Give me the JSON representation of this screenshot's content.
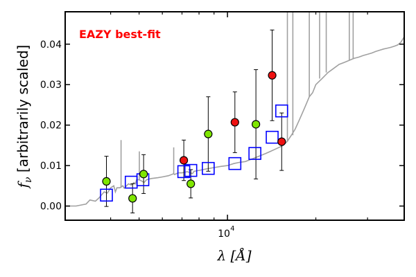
{
  "chart_data": {
    "type": "scatter",
    "annotation": "EAZY best-fit",
    "annotation_color": "#ff0000",
    "xlabel": "λ [Å]",
    "ylabel": "f_ν [arbitrarily scaled]",
    "xscale": "log",
    "xlim": [
      2800,
      40000
    ],
    "ylim": [
      -0.0035,
      0.048
    ],
    "y_ticks": [
      0.0,
      0.01,
      0.02,
      0.03,
      0.04
    ],
    "y_tick_labels": [
      "0.00",
      "0.01",
      "0.02",
      "0.03",
      "0.04"
    ],
    "x_tick_label": "10^4",
    "x_major_tick": 10000,
    "x_minor_ticks": [
      4000,
      5000,
      6000,
      7000,
      8000,
      9000,
      20000,
      30000,
      40000
    ],
    "grid": false,
    "template_spectrum": {
      "color": "#a0a0a0",
      "points": [
        [
          2800,
          0.0
        ],
        [
          3050,
          0.0
        ],
        [
          3300,
          0.0005
        ],
        [
          3400,
          0.0015
        ],
        [
          3550,
          0.0012
        ],
        [
          3650,
          0.002
        ],
        [
          3800,
          0.0035
        ],
        [
          3900,
          0.0032
        ],
        [
          4000,
          0.0045
        ],
        [
          4100,
          0.005
        ],
        [
          4150,
          0.0035
        ],
        [
          4200,
          0.0045
        ],
        [
          4300,
          0.0045
        ],
        [
          4400,
          0.005
        ],
        [
          4450,
          0.0044
        ],
        [
          4500,
          0.0048
        ],
        [
          4600,
          0.0055
        ],
        [
          4700,
          0.0052
        ],
        [
          4800,
          0.0058
        ],
        [
          4860,
          0.0055
        ],
        [
          4900,
          0.0065
        ],
        [
          5000,
          0.0065
        ],
        [
          5100,
          0.0062
        ],
        [
          5200,
          0.0058
        ],
        [
          5300,
          0.0065
        ],
        [
          5500,
          0.0068
        ],
        [
          5800,
          0.007
        ],
        [
          6000,
          0.0072
        ],
        [
          6300,
          0.0075
        ],
        [
          6560,
          0.008
        ],
        [
          6600,
          0.0078
        ],
        [
          6800,
          0.0082
        ],
        [
          7000,
          0.0082
        ],
        [
          7300,
          0.0085
        ],
        [
          7600,
          0.008
        ],
        [
          7700,
          0.0086
        ],
        [
          8000,
          0.0088
        ],
        [
          8500,
          0.0092
        ],
        [
          9000,
          0.0095
        ],
        [
          9500,
          0.0098
        ],
        [
          10000,
          0.01
        ],
        [
          10500,
          0.0105
        ],
        [
          11000,
          0.0108
        ],
        [
          11500,
          0.011
        ],
        [
          12000,
          0.0115
        ],
        [
          12500,
          0.012
        ],
        [
          13000,
          0.0125
        ],
        [
          13500,
          0.013
        ],
        [
          14000,
          0.0135
        ],
        [
          14500,
          0.014
        ],
        [
          15000,
          0.0145
        ],
        [
          15500,
          0.015
        ],
        [
          16000,
          0.016
        ],
        [
          16500,
          0.0175
        ],
        [
          17000,
          0.019
        ],
        [
          17500,
          0.021
        ],
        [
          18000,
          0.023
        ],
        [
          18500,
          0.025
        ],
        [
          19000,
          0.027
        ],
        [
          19500,
          0.028
        ],
        [
          20000,
          0.03
        ],
        [
          21000,
          0.0315
        ],
        [
          22000,
          0.033
        ],
        [
          23000,
          0.034
        ],
        [
          24000,
          0.035
        ],
        [
          25000,
          0.0355
        ],
        [
          26000,
          0.036
        ],
        [
          27000,
          0.0365
        ],
        [
          28000,
          0.0368
        ],
        [
          29000,
          0.0372
        ],
        [
          30000,
          0.0375
        ],
        [
          31000,
          0.0378
        ],
        [
          32000,
          0.0382
        ],
        [
          33000,
          0.0385
        ],
        [
          34000,
          0.0388
        ],
        [
          35000,
          0.039
        ],
        [
          36000,
          0.0392
        ],
        [
          37000,
          0.0395
        ],
        [
          38000,
          0.0398
        ],
        [
          39000,
          0.0405
        ],
        [
          40000,
          0.0418
        ]
      ],
      "emission_lines": [
        [
          4340,
          0.0163
        ],
        [
          5010,
          0.0135
        ],
        [
          6560,
          0.0145
        ],
        [
          16000,
          0.05
        ],
        [
          16700,
          0.05
        ],
        [
          19000,
          0.05
        ],
        [
          20600,
          0.05
        ],
        [
          21700,
          0.05
        ],
        [
          26000,
          0.05
        ],
        [
          26800,
          0.05
        ]
      ]
    },
    "series": [
      {
        "name": "EAZY best-fit",
        "marker": "square",
        "color": "#0000ff",
        "x": [
          3870,
          4700,
          5150,
          7100,
          7500,
          8600,
          10600,
          12400,
          14200,
          15300
        ],
        "y": [
          0.0027,
          0.0059,
          0.0065,
          0.0085,
          0.0088,
          0.0093,
          0.0105,
          0.013,
          0.017,
          0.0235
        ]
      },
      {
        "name": "",
        "marker": "circle",
        "color": "#7fe600",
        "x": [
          3870,
          4750,
          5180,
          7500,
          8600,
          12500
        ],
        "y": [
          0.0061,
          0.0019,
          0.0079,
          0.0055,
          0.0178,
          0.0202
        ],
        "err": [
          0.0062,
          0.0036,
          0.0048,
          0.0035,
          0.0092,
          0.0135
        ]
      },
      {
        "name": "",
        "marker": "circle",
        "color": "#ee1111",
        "x": [
          7100,
          10600,
          14200,
          15300
        ],
        "y": [
          0.0113,
          0.0207,
          0.0323,
          0.0159
        ],
        "err": [
          0.005,
          0.0075,
          0.0112,
          0.0071
        ]
      }
    ]
  }
}
